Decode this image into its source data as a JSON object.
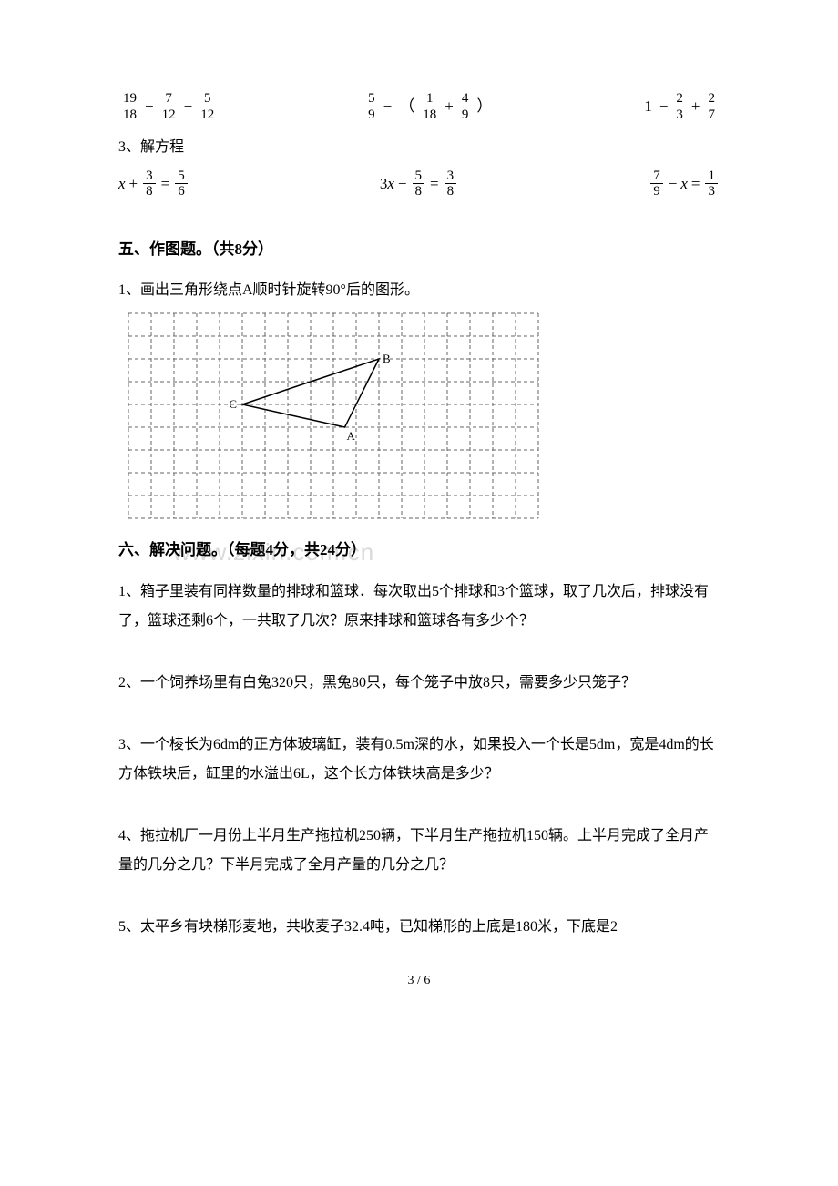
{
  "equations_row1": {
    "e1": {
      "f1n": "19",
      "f1d": "18",
      "f2n": "7",
      "f2d": "12",
      "f3n": "5",
      "f3d": "12",
      "op1": "−",
      "op2": "−"
    },
    "e2": {
      "f1n": "5",
      "f1d": "9",
      "f2n": "1",
      "f2d": "18",
      "f3n": "4",
      "f3d": "9",
      "op1": "−",
      "lparen": "（",
      "rparen": "）",
      "op2": "+"
    },
    "e3": {
      "lead": "1",
      "f1n": "2",
      "f1d": "3",
      "f2n": "2",
      "f2d": "7",
      "op1": "−",
      "op2": "+"
    }
  },
  "sub_label_3": "3、解方程",
  "equations_row2": {
    "e1": {
      "var": "x",
      "f1n": "3",
      "f1d": "8",
      "f2n": "5",
      "f2d": "6",
      "op1": "+",
      "eq": "="
    },
    "e2": {
      "coef": "3",
      "var": "x",
      "f1n": "5",
      "f1d": "8",
      "f2n": "3",
      "f2d": "8",
      "op1": "−",
      "eq": "="
    },
    "e3": {
      "f1n": "7",
      "f1d": "9",
      "var": "x",
      "f2n": "1",
      "f2d": "3",
      "op1": "−",
      "eq": "="
    }
  },
  "section5": {
    "heading": "五、作图题。（共8分）",
    "q1": "1、画出三角形绕点A顺时针旋转90°后的图形。"
  },
  "grid": {
    "cols": 18,
    "rows": 9,
    "cell": 25,
    "stroke": "#666666",
    "stroke_width": 1,
    "dash": "4,3",
    "triangle": {
      "A": {
        "col": 9.5,
        "row": 5.0,
        "label": "A"
      },
      "B": {
        "col": 11.0,
        "row": 2.0,
        "label": "B"
      },
      "C": {
        "col": 5.0,
        "row": 4.0,
        "label": "C"
      },
      "line_color": "#000000",
      "line_width": 1.5
    }
  },
  "section6": {
    "heading": "六、解决问题。（每题4分，共24分）",
    "q1": "1、箱子里装有同样数量的排球和篮球．每次取出5个排球和3个篮球，取了几次后，排球没有了，篮球还剩6个，一共取了几次？原来排球和篮球各有多少个？",
    "q2": "2、一个饲养场里有白兔320只，黑兔80只，每个笼子中放8只，需要多少只笼子？",
    "q3": "3、一个棱长为6dm的正方体玻璃缸，装有0.5m深的水，如果投入一个长是5dm，宽是4dm的长方体铁块后，缸里的水溢出6L，这个长方体铁块高是多少？",
    "q4": "4、拖拉机厂一月份上半月生产拖拉机250辆，下半月生产拖拉机150辆。上半月完成了全月产量的几分之几？下半月完成了全月产量的几分之几？",
    "q5": "5、太平乡有块梯形麦地，共收麦子32.4吨，已知梯形的上底是180米，下底是2"
  },
  "watermark_text": "www.zixin.com.cn",
  "page_number": "3 / 6"
}
